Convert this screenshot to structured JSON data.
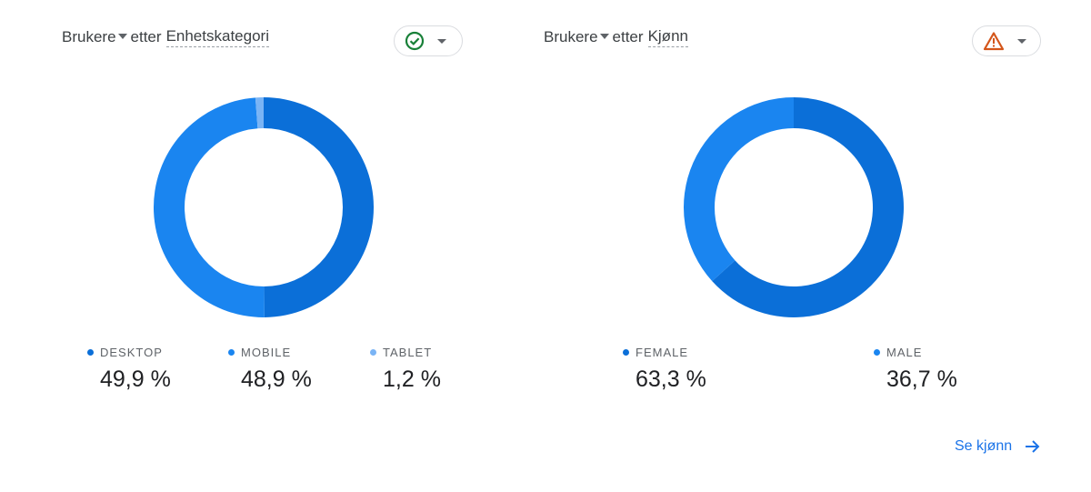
{
  "cards": [
    {
      "title": {
        "metric": "Brukere",
        "connector": "etter",
        "dimension": "Enhetskategori"
      },
      "status_icon": "check-circle-icon",
      "status_color": "#188038",
      "legend": [
        {
          "label": "DESKTOP",
          "value": "49,9 %",
          "color": "#0b6fd8"
        },
        {
          "label": "MOBILE",
          "value": "48,9 %",
          "color": "#1a85f0"
        },
        {
          "label": "TABLET",
          "value": "1,2 %",
          "color": "#7ab4f5"
        }
      ]
    },
    {
      "title": {
        "metric": "Brukere",
        "connector": "etter",
        "dimension": "Kjønn"
      },
      "status_icon": "warning-triangle-icon",
      "status_color": "#d4561b",
      "legend": [
        {
          "label": "FEMALE",
          "value": "63,3 %",
          "color": "#0b6fd8"
        },
        {
          "label": "MALE",
          "value": "36,7 %",
          "color": "#1a85f0"
        }
      ],
      "link": {
        "label": "Se kjønn",
        "icon": "arrow-right-icon"
      }
    }
  ],
  "chart_data": [
    {
      "type": "pie",
      "title": "Brukere etter Enhetskategori",
      "categories": [
        "DESKTOP",
        "MOBILE",
        "TABLET"
      ],
      "values": [
        49.9,
        48.9,
        1.2
      ],
      "colors": [
        "#0b6fd8",
        "#1a85f0",
        "#7ab4f5"
      ],
      "donut": true,
      "legend_position": "bottom"
    },
    {
      "type": "pie",
      "title": "Brukere etter Kjønn",
      "categories": [
        "FEMALE",
        "MALE"
      ],
      "values": [
        63.3,
        36.7
      ],
      "colors": [
        "#0b6fd8",
        "#1a85f0"
      ],
      "donut": true,
      "legend_position": "bottom"
    }
  ]
}
